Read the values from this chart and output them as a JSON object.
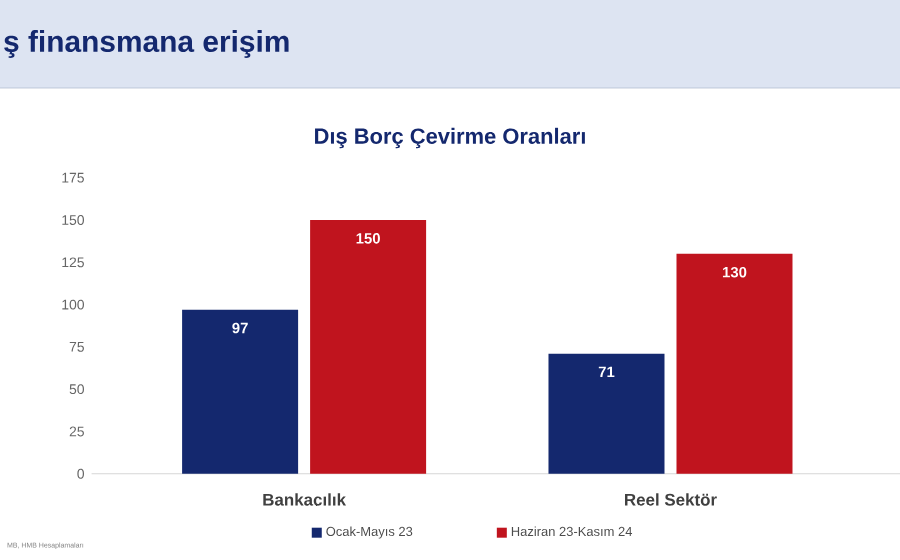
{
  "chart_data": {
    "type": "bar",
    "title": "Dış Borç Çevirme Oranları",
    "annotations": [
      "ş finansmana erişim",
      "MB, HMB Hesaplamaları"
    ],
    "categories": [
      "Bankacılık",
      "Reel Sektör"
    ],
    "series": [
      {
        "name": "Ocak-Mayıs 23",
        "color": "#14286e",
        "values": [
          97,
          71
        ]
      },
      {
        "name": "Haziran 23-Kasım 24",
        "color": "#c0141e",
        "values": [
          150,
          130
        ]
      }
    ],
    "ylim": [
      0,
      175
    ],
    "yticks": [
      0,
      25,
      50,
      75,
      100,
      125,
      150,
      175
    ],
    "data_labels": true,
    "legend": "bottom"
  }
}
